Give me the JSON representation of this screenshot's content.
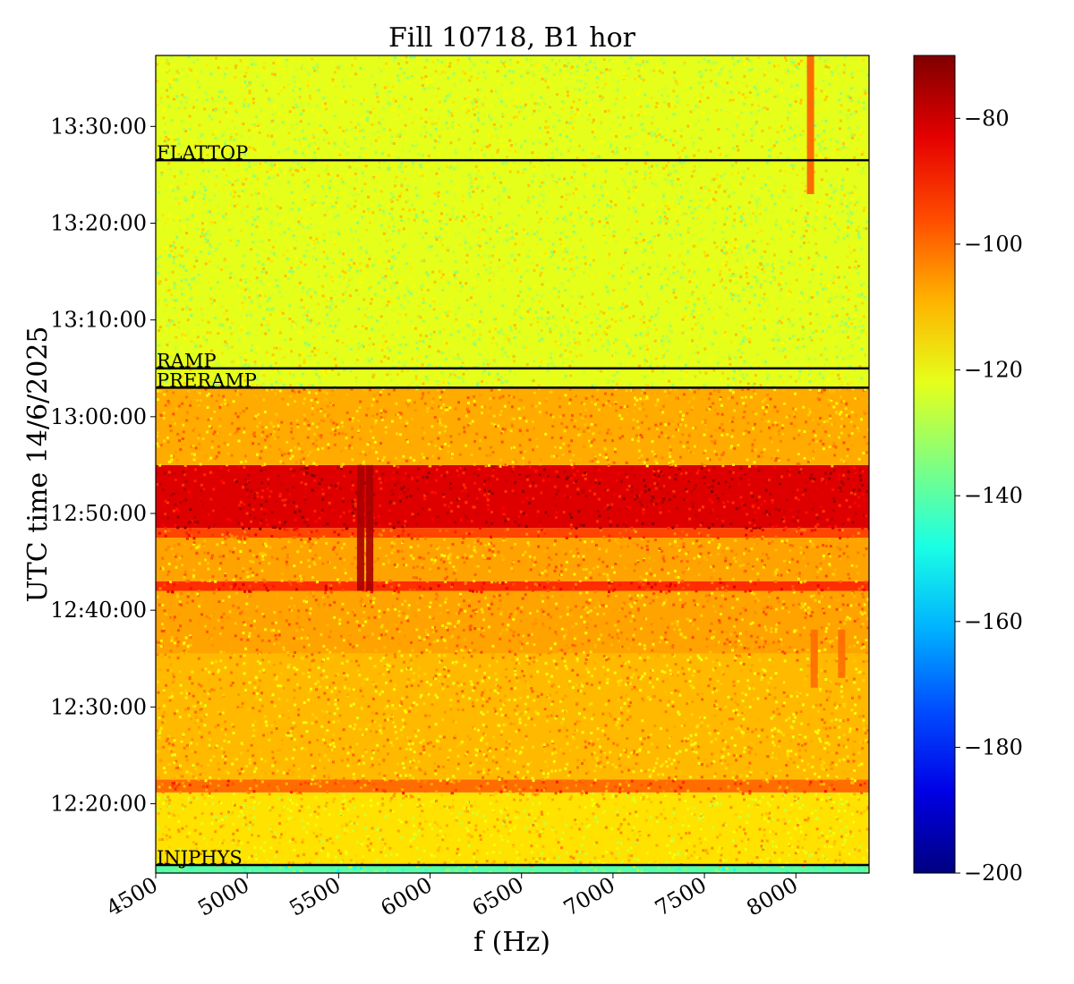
{
  "chart_data": {
    "type": "heatmap",
    "title": "Fill 10718, B1 hor",
    "xlabel": "f (Hz)",
    "ylabel": "UTC time 14/6/2025",
    "xlim": [
      4500,
      8400
    ],
    "ylim": [
      "12:12:50",
      "13:37:20"
    ],
    "x_ticks": [
      "4500",
      "5000",
      "5500",
      "6000",
      "6500",
      "7000",
      "7500",
      "8000"
    ],
    "y_ticks": [
      "12:20:00",
      "12:30:00",
      "12:40:00",
      "12:50:00",
      "13:00:00",
      "13:10:00",
      "13:20:00",
      "13:30:00"
    ],
    "colormap": "jet",
    "colorbar": {
      "vmin": -200,
      "vmax": -70,
      "ticks": [
        "−200",
        "−180",
        "−160",
        "−140",
        "−120",
        "−100",
        "−80"
      ]
    },
    "beam_mode_markers": [
      {
        "label": "INJPHYS",
        "time": "12:13:40"
      },
      {
        "label": "PRERAMP",
        "time": "13:03:00"
      },
      {
        "label": "RAMP",
        "time": "13:05:00"
      },
      {
        "label": "FLATTOP",
        "time": "13:26:30"
      }
    ],
    "levels": [
      {
        "from": "12:12:50",
        "to": "12:13:40",
        "value": -140
      },
      {
        "from": "12:13:40",
        "to": "12:21:10",
        "value": -115
      },
      {
        "from": "12:21:10",
        "to": "12:22:30",
        "value": -100
      },
      {
        "from": "12:22:30",
        "to": "12:35:30",
        "value": -110
      },
      {
        "from": "12:35:30",
        "to": "12:42:00",
        "value": -107
      },
      {
        "from": "12:42:00",
        "to": "12:43:00",
        "value": -92
      },
      {
        "from": "12:43:00",
        "to": "12:47:30",
        "value": -107
      },
      {
        "from": "12:47:30",
        "to": "12:48:30",
        "value": -95
      },
      {
        "from": "12:48:30",
        "to": "12:55:00",
        "value": -82
      },
      {
        "from": "12:55:00",
        "to": "13:03:00",
        "value": -108
      },
      {
        "from": "13:03:00",
        "to": "13:37:20",
        "value": -122
      }
    ],
    "features": [
      {
        "f": 5620,
        "from": "12:42:00",
        "to": "12:55:00",
        "value": -75
      },
      {
        "f": 5670,
        "from": "12:42:00",
        "to": "12:55:00",
        "value": -75
      },
      {
        "f": 8080,
        "from": "13:23:00",
        "to": "13:37:20",
        "value": -98
      },
      {
        "f": 8100,
        "from": "12:32:00",
        "to": "12:38:00",
        "value": -100
      },
      {
        "f": 8250,
        "from": "12:33:00",
        "to": "12:38:00",
        "value": -100
      }
    ]
  }
}
